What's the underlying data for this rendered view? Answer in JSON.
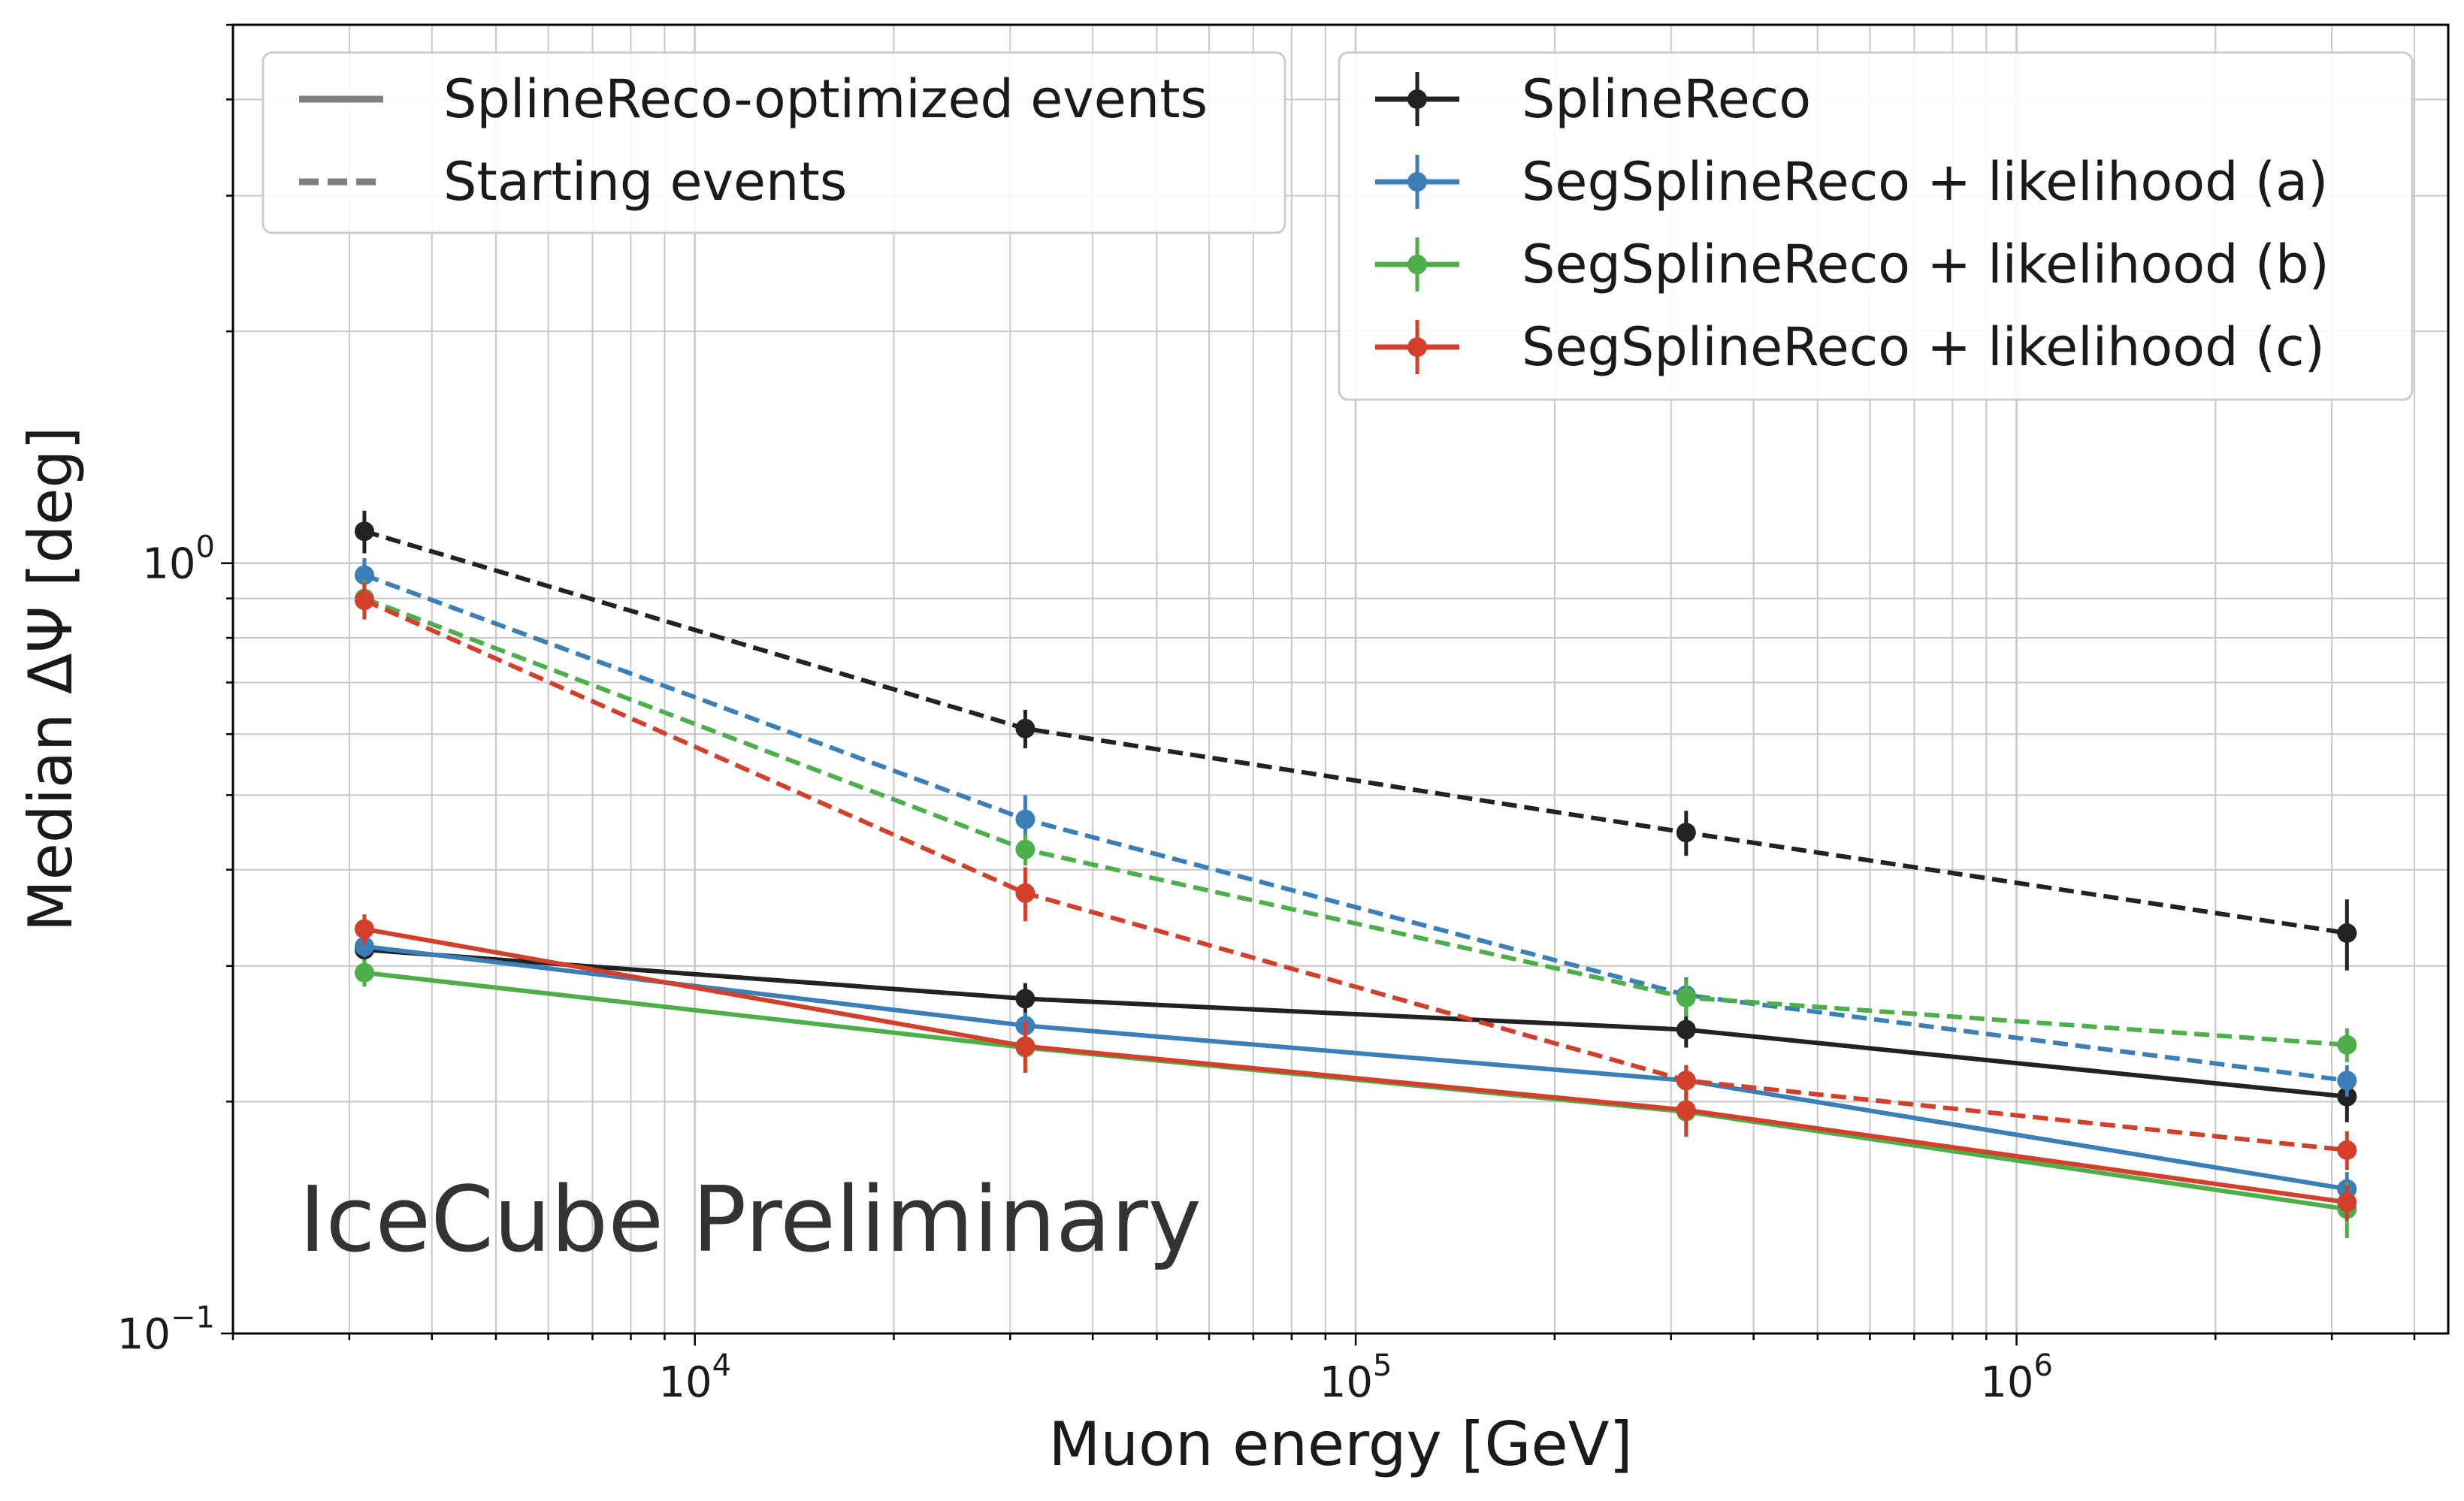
{
  "chart_data": {
    "type": "line",
    "xlabel": "Muon energy [GeV]",
    "ylabel": "Median ΔΨ [deg]",
    "xscale": "log",
    "yscale": "log",
    "xlim": [
      2000,
      4500000
    ],
    "ylim": [
      0.1,
      5
    ],
    "grid": "major and minor",
    "x_ticks": [
      {
        "value": 10000,
        "base": "10",
        "exp": "4"
      },
      {
        "value": 100000,
        "base": "10",
        "exp": "5"
      },
      {
        "value": 1000000,
        "base": "10",
        "exp": "6"
      }
    ],
    "y_ticks": [
      {
        "value": 0.1,
        "base": "10",
        "exp": "−1"
      },
      {
        "value": 1,
        "base": "10",
        "exp": "0"
      }
    ],
    "x": [
      3162,
      31623,
      316228,
      3162278
    ],
    "series": [
      {
        "name": "SplineReco",
        "color": "#222222",
        "linestyle": "solid",
        "values": [
          0.315,
          0.272,
          0.248,
          0.203
        ],
        "errors": [
          0.012,
          0.013,
          0.013,
          0.015
        ]
      },
      {
        "name": "SegSplineReco + likelihood (a)",
        "color": "#3a7fb8",
        "linestyle": "solid",
        "values": [
          0.318,
          0.251,
          0.213,
          0.154
        ],
        "errors": [
          0.01,
          0.01,
          0.01,
          0.008
        ]
      },
      {
        "name": "SegSplineReco + likelihood (b)",
        "color": "#4daf4a",
        "linestyle": "solid",
        "values": [
          0.294,
          0.235,
          0.194,
          0.145
        ],
        "errors": [
          0.012,
          0.01,
          0.01,
          0.012
        ]
      },
      {
        "name": "SegSplineReco + likelihood (c)",
        "color": "#d2402c",
        "linestyle": "solid",
        "values": [
          0.335,
          0.236,
          0.195,
          0.148
        ],
        "errors": [
          0.015,
          0.018,
          0.015,
          0.008
        ]
      },
      {
        "name": "SplineReco",
        "color": "#222222",
        "linestyle": "dashed",
        "values": [
          1.1,
          0.61,
          0.447,
          0.331
        ],
        "errors": [
          0.07,
          0.035,
          0.03,
          0.035
        ]
      },
      {
        "name": "SegSplineReco + likelihood (a)",
        "color": "#3a7fb8",
        "linestyle": "dashed",
        "values": [
          0.965,
          0.465,
          0.275,
          0.213
        ],
        "errors": [
          0.05,
          0.035,
          0.015,
          0.01
        ]
      },
      {
        "name": "SegSplineReco + likelihood (b)",
        "color": "#4daf4a",
        "linestyle": "dashed",
        "values": [
          0.9,
          0.425,
          0.273,
          0.237
        ],
        "errors": [
          0.05,
          0.02,
          0.015,
          0.012
        ]
      },
      {
        "name": "SegSplineReco + likelihood (c)",
        "color": "#d2402c",
        "linestyle": "dashed",
        "values": [
          0.895,
          0.373,
          0.213,
          0.173
        ],
        "errors": [
          0.05,
          0.03,
          0.01,
          0.01
        ]
      }
    ],
    "legend_linestyle": {
      "placement": "top-left",
      "entries": [
        {
          "label": "SplineReco-optimized events",
          "linestyle": "solid",
          "color": "#808080"
        },
        {
          "label": "Starting events",
          "linestyle": "dashed",
          "color": "#808080"
        }
      ]
    },
    "legend_methods": {
      "placement": "top-right",
      "entries": [
        {
          "label": "SplineReco",
          "color": "#222222"
        },
        {
          "label": "SegSplineReco + likelihood (a)",
          "color": "#3a7fb8"
        },
        {
          "label": "SegSplineReco + likelihood (b)",
          "color": "#4daf4a"
        },
        {
          "label": "SegSplineReco + likelihood (c)",
          "color": "#d2402c"
        }
      ]
    },
    "annotation": "IceCube Preliminary"
  }
}
